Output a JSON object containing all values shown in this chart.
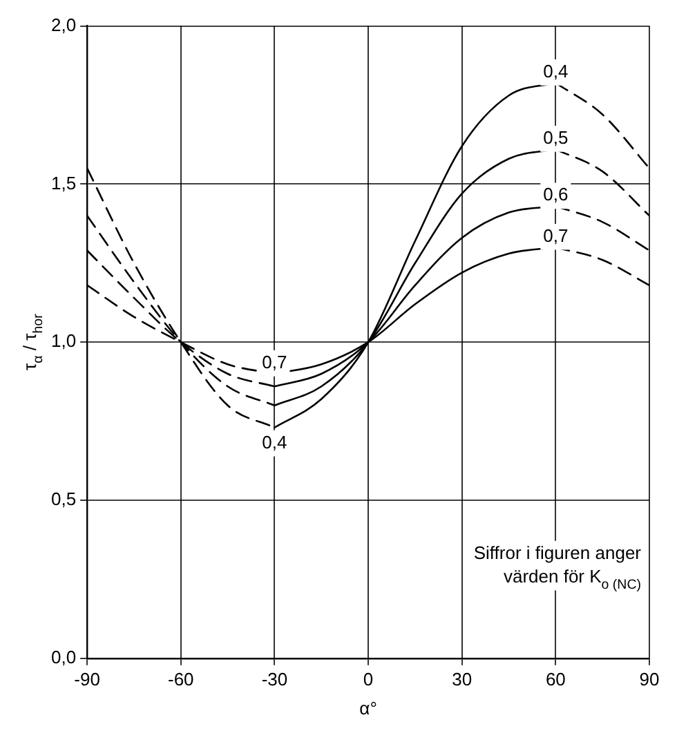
{
  "chart_data": {
    "type": "line",
    "xlabel": "α°",
    "ylabel": "τ$_{α}$ / τ$_{hor}$",
    "xlim": [
      -90,
      90
    ],
    "xticks": [
      -90,
      -60,
      -30,
      0,
      30,
      60,
      90
    ],
    "ylim": [
      0,
      2
    ],
    "yticks": [
      {
        "value": 0,
        "label": "0,0"
      },
      {
        "value": 0.5,
        "label": "0,5"
      },
      {
        "value": 1,
        "label": "1,0"
      },
      {
        "value": 1.5,
        "label": "1,5"
      },
      {
        "value": 2,
        "label": "2,0"
      }
    ],
    "grid": true,
    "legend": false,
    "marker": "none",
    "series": [
      {
        "name": "0,4",
        "color": "#000000",
        "line_style": "dashed",
        "x": [
          -90,
          -75,
          -60,
          -45,
          -30
        ],
        "values": [
          1.55,
          1.25,
          1.0,
          0.8,
          0.73
        ]
      },
      {
        "name": "0,4",
        "color": "#000000",
        "line_style": "solid",
        "x": [
          -30,
          -15,
          0,
          15,
          30,
          45,
          60
        ],
        "values": [
          0.73,
          0.82,
          1.0,
          1.32,
          1.62,
          1.78,
          1.82
        ]
      },
      {
        "color": "#000000",
        "line_style": "dashed",
        "x": [
          60,
          75,
          90
        ],
        "values": [
          1.82,
          1.72,
          1.55
        ]
      },
      {
        "color": "#000000",
        "line_style": "dashed",
        "x": [
          -90,
          -75,
          -60,
          -45,
          -30
        ],
        "values": [
          1.4,
          1.19,
          1.0,
          0.86,
          0.8
        ]
      },
      {
        "name": "0,5",
        "color": "#000000",
        "line_style": "solid",
        "x": [
          -30,
          -15,
          0,
          15,
          30,
          45,
          60
        ],
        "values": [
          0.8,
          0.86,
          1.0,
          1.25,
          1.47,
          1.58,
          1.61
        ]
      },
      {
        "color": "#000000",
        "line_style": "dashed",
        "x": [
          60,
          75,
          90
        ],
        "values": [
          1.61,
          1.54,
          1.4
        ]
      },
      {
        "color": "#000000",
        "line_style": "dashed",
        "x": [
          -90,
          -75,
          -60,
          -45,
          -30
        ],
        "values": [
          1.29,
          1.14,
          1.0,
          0.9,
          0.86
        ]
      },
      {
        "name": "0,6",
        "color": "#000000",
        "line_style": "solid",
        "x": [
          -30,
          -15,
          0,
          15,
          30,
          45,
          60
        ],
        "values": [
          0.86,
          0.9,
          1.0,
          1.18,
          1.33,
          1.41,
          1.43
        ]
      },
      {
        "color": "#000000",
        "line_style": "dashed",
        "x": [
          60,
          75,
          90
        ],
        "values": [
          1.43,
          1.38,
          1.29
        ]
      },
      {
        "name": "0,7",
        "color": "#000000",
        "line_style": "dashed",
        "x": [
          -90,
          -75,
          -60,
          -45,
          -30
        ],
        "values": [
          1.18,
          1.08,
          1.0,
          0.93,
          0.9
        ]
      },
      {
        "name": "0,7",
        "color": "#000000",
        "line_style": "solid",
        "x": [
          -30,
          -15,
          0,
          15,
          30,
          45,
          60
        ],
        "values": [
          0.9,
          0.93,
          1.0,
          1.12,
          1.22,
          1.28,
          1.3
        ]
      },
      {
        "color": "#000000",
        "line_style": "dashed",
        "x": [
          60,
          75,
          90
        ],
        "values": [
          1.3,
          1.26,
          1.18
        ]
      }
    ],
    "annotations": [
      "Siffror i figuren anger\nvärden för K$_{o (NC)}$"
    ]
  }
}
